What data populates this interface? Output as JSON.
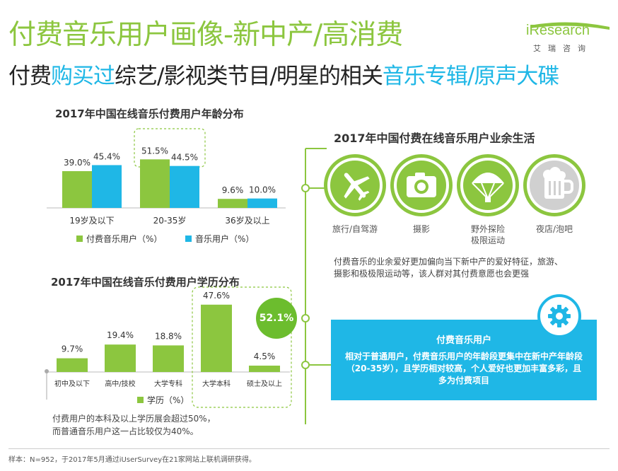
{
  "header": {
    "title": "付费音乐用户画像-新中产/高消费",
    "subtitle_parts": [
      "付费",
      "购买过",
      "综艺/影视类节目/明星的相关",
      "音乐专辑/原声大碟"
    ]
  },
  "logo": {
    "name": "iResearch",
    "sub": "艾瑞咨询"
  },
  "colors": {
    "green": "#8cc63f",
    "blue": "#1fb7e6",
    "badge": "#6cbd2e"
  },
  "chart_data": [
    {
      "type": "bar",
      "title": "2017年中国在线音乐付费用户年龄分布",
      "categories": [
        "19岁及以下",
        "20-35岁",
        "36岁及以上"
      ],
      "series": [
        {
          "name": "付费音乐用户（%）",
          "color": "#8cc63f",
          "values": [
            39.0,
            51.5,
            9.6
          ]
        },
        {
          "name": "音乐用户（%）",
          "color": "#1fb7e6",
          "values": [
            45.4,
            44.5,
            10.0
          ]
        }
      ],
      "value_labels": [
        [
          "39.0%",
          "51.5%",
          "9.6%"
        ],
        [
          "45.4%",
          "44.5%",
          "10.0%"
        ]
      ],
      "ylim": [
        0,
        60
      ]
    },
    {
      "type": "bar",
      "title": "2017年中国在线音乐付费用户学历分布",
      "categories": [
        "初中及以下",
        "高中/技校",
        "大学专科",
        "大学本科",
        "硕士及以上"
      ],
      "series": [
        {
          "name": "学历（%）",
          "color": "#8cc63f",
          "values": [
            9.7,
            19.4,
            18.8,
            47.6,
            4.5
          ]
        }
      ],
      "value_labels": [
        "9.7%",
        "19.4%",
        "18.8%",
        "47.6%",
        "4.5%"
      ],
      "ylim": [
        0,
        50
      ],
      "highlight_total": "52.1%"
    }
  ],
  "hobbies": {
    "title": "2017年中国付费在线音乐用户业余生活",
    "items": [
      {
        "label": "旅行/自驾游",
        "icon": "airplane-icon"
      },
      {
        "label": "摄影",
        "icon": "camera-icon"
      },
      {
        "label": "野外探险\n极限运动",
        "icon": "parachute-icon"
      },
      {
        "label": "夜店/泡吧",
        "icon": "beer-icon"
      }
    ],
    "description": "付费音乐的业余爱好更加偏向当下新中产的爱好特征，旅游、摄影和极极限运动等，该人群对其付费意愿也会更强"
  },
  "summary": {
    "title": "付费音乐用户",
    "text": "相对于普通用户，付费音乐用户的年龄段更集中在新中产年龄段（20-35岁），且学历相对较高，个人爱好也更加丰富多彩，且多为付费项目"
  },
  "note": {
    "line1": "付费用户的本科及以上学历展会超过50%，",
    "line2": "而普通音乐用户这一占比较仅为40%。"
  },
  "footnote": "样本：N=952，于2017年5月通过iUserSurvey在21家网站上联机调研获得。"
}
